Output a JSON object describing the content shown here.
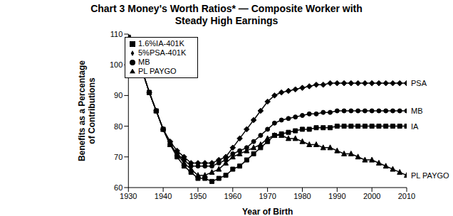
{
  "chart_data": {
    "type": "line",
    "title": "Chart 3 Money's Worth Ratios* — Composite Worker with Steady High Earnings",
    "x_label": "Year of Birth",
    "y_label": "Benefits as a Percentage of Contributions",
    "x": [
      1930,
      1932,
      1934,
      1936,
      1938,
      1940,
      1942,
      1944,
      1946,
      1948,
      1950,
      1952,
      1954,
      1956,
      1958,
      1960,
      1962,
      1964,
      1966,
      1968,
      1970,
      1972,
      1974,
      1976,
      1978,
      1980,
      1982,
      1984,
      1986,
      1988,
      1990,
      1992,
      1994,
      1996,
      1998,
      2000,
      2002,
      2004,
      2006,
      2008,
      2010
    ],
    "series": [
      {
        "name": "5%PSA-401K",
        "color": "#000000",
        "marker": "diamond",
        "line_style": "solid",
        "values": [
          109,
          104,
          98,
          91,
          85,
          79,
          75,
          72,
          70,
          68,
          68,
          68,
          68,
          69,
          70,
          73,
          76,
          79,
          82,
          85,
          88,
          90,
          91,
          91.5,
          92,
          92.5,
          93,
          93.5,
          93.5,
          94,
          94,
          94,
          94,
          94,
          94,
          94,
          94,
          94,
          94,
          94,
          94
        ]
      },
      {
        "name": "1.6%IA-401K",
        "color": "#000000",
        "marker": "square",
        "line_style": "solid",
        "values": [
          109,
          104,
          98,
          91,
          85,
          79,
          74,
          70,
          67,
          65,
          63,
          63,
          62,
          63,
          64,
          66,
          67,
          69,
          71,
          73,
          75,
          77,
          77.5,
          78,
          78.5,
          79,
          79,
          79.5,
          79.5,
          79.5,
          80,
          80,
          80,
          80,
          80,
          80,
          80,
          80,
          80,
          80,
          80
        ]
      },
      {
        "name": "MB",
        "color": "#000000",
        "marker": "circle",
        "line_style": "solid",
        "values": [
          109,
          104,
          98,
          91,
          85,
          79,
          74,
          71,
          69,
          67,
          67,
          67,
          67,
          68,
          69,
          71,
          72,
          73,
          75,
          77,
          79,
          81,
          82,
          82.5,
          83,
          83.5,
          84,
          84,
          84.5,
          84.5,
          85,
          85,
          85,
          85,
          85,
          85,
          85,
          85,
          85,
          85,
          85
        ]
      },
      {
        "name": "PL PAYGO",
        "color": "#000000",
        "marker": "triangle",
        "line_style": "solid",
        "values": [
          109,
          104,
          98,
          91,
          85,
          79,
          74,
          71,
          68,
          66,
          64,
          64,
          65,
          66,
          68,
          70,
          71,
          72,
          73,
          74,
          76,
          77,
          77,
          76,
          76,
          75,
          74,
          74,
          73,
          73,
          72,
          71,
          71,
          70,
          69,
          69,
          68,
          67,
          66,
          65,
          64
        ]
      }
    ],
    "xlim": [
      1930,
      2010
    ],
    "xticks": [
      1930,
      1940,
      1950,
      1960,
      1970,
      1980,
      1990,
      2000,
      2010
    ],
    "ylim": [
      60,
      110
    ],
    "yticks": [
      60,
      70,
      80,
      90,
      100,
      110
    ],
    "grid": false,
    "legend": "upper left",
    "annotations": [
      {
        "text": "PSA",
        "series": "5%PSA-401K"
      },
      {
        "text": "MB",
        "series": "MB"
      },
      {
        "text": "IA",
        "series": "1.6%IA-401K"
      },
      {
        "text": "PL PAYGO",
        "series": "PL PAYGO"
      }
    ]
  }
}
